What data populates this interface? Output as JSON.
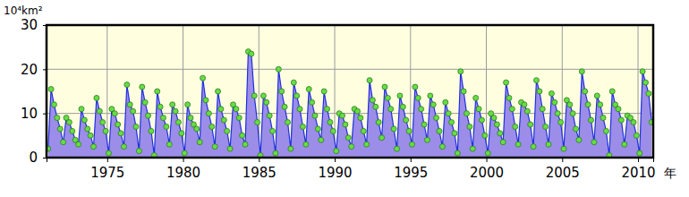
{
  "chart_data": {
    "type": "area",
    "y_label": "10⁴km²",
    "x_label": "年",
    "x": [
      1971.1,
      1971.3,
      1971.5,
      1971.7,
      1971.9,
      1972.1,
      1972.3,
      1972.5,
      1972.7,
      1972.9,
      1973.1,
      1973.3,
      1973.5,
      1973.7,
      1973.9,
      1974.1,
      1974.3,
      1974.5,
      1974.7,
      1974.9,
      1975.1,
      1975.3,
      1975.5,
      1975.7,
      1975.9,
      1976.1,
      1976.3,
      1976.5,
      1976.7,
      1976.9,
      1977.1,
      1977.3,
      1977.5,
      1977.7,
      1977.9,
      1978.1,
      1978.3,
      1978.5,
      1978.7,
      1978.9,
      1979.1,
      1979.3,
      1979.5,
      1979.7,
      1979.9,
      1980.1,
      1980.3,
      1980.5,
      1980.7,
      1980.9,
      1981.1,
      1981.3,
      1981.5,
      1981.7,
      1981.9,
      1982.1,
      1982.3,
      1982.5,
      1982.7,
      1982.9,
      1983.1,
      1983.3,
      1983.5,
      1983.7,
      1983.9,
      1984.1,
      1984.3,
      1984.5,
      1984.7,
      1984.9,
      1985.1,
      1985.3,
      1985.5,
      1985.7,
      1985.9,
      1986.1,
      1986.3,
      1986.5,
      1986.7,
      1986.9,
      1987.1,
      1987.3,
      1987.5,
      1987.7,
      1987.9,
      1988.1,
      1988.3,
      1988.5,
      1988.7,
      1988.9,
      1989.1,
      1989.3,
      1989.5,
      1989.7,
      1989.9,
      1990.1,
      1990.3,
      1990.5,
      1990.7,
      1990.9,
      1991.1,
      1991.3,
      1991.5,
      1991.7,
      1991.9,
      1992.1,
      1992.3,
      1992.5,
      1992.7,
      1992.9,
      1993.1,
      1993.3,
      1993.5,
      1993.7,
      1993.9,
      1994.1,
      1994.3,
      1994.5,
      1994.7,
      1994.9,
      1995.1,
      1995.3,
      1995.5,
      1995.7,
      1995.9,
      1996.1,
      1996.3,
      1996.5,
      1996.7,
      1996.9,
      1997.1,
      1997.3,
      1997.5,
      1997.7,
      1997.9,
      1998.1,
      1998.3,
      1998.5,
      1998.7,
      1998.9,
      1999.1,
      1999.3,
      1999.5,
      1999.7,
      1999.9,
      2000.1,
      2000.3,
      2000.5,
      2000.7,
      2000.9,
      2001.1,
      2001.3,
      2001.5,
      2001.7,
      2001.9,
      2002.1,
      2002.3,
      2002.5,
      2002.7,
      2002.9,
      2003.1,
      2003.3,
      2003.5,
      2003.7,
      2003.9,
      2004.1,
      2004.3,
      2004.5,
      2004.7,
      2004.9,
      2005.1,
      2005.3,
      2005.5,
      2005.7,
      2005.9,
      2006.1,
      2006.3,
      2006.5,
      2006.7,
      2006.9,
      2007.1,
      2007.3,
      2007.5,
      2007.7,
      2007.9,
      2008.1,
      2008.3,
      2008.5,
      2008.7,
      2008.9,
      2009.1,
      2009.3,
      2009.5,
      2009.7,
      2009.9,
      2010.1,
      2010.3,
      2010.5,
      2010.7,
      2010.9
    ],
    "values": [
      2.0,
      15.5,
      12.0,
      9.0,
      6.5,
      3.5,
      9.0,
      8.0,
      6.0,
      4.0,
      3.0,
      11.0,
      8.5,
      6.5,
      5.0,
      2.5,
      13.5,
      10.5,
      8.0,
      6.0,
      1.0,
      11.0,
      10.0,
      7.5,
      5.5,
      2.5,
      16.5,
      12.0,
      10.5,
      7.0,
      1.5,
      16.0,
      12.5,
      9.5,
      6.0,
      0.5,
      15.0,
      11.5,
      9.0,
      7.0,
      3.0,
      12.0,
      10.5,
      8.0,
      5.5,
      1.0,
      12.0,
      9.0,
      7.5,
      6.5,
      3.5,
      18.0,
      13.0,
      10.0,
      7.0,
      2.5,
      15.0,
      11.0,
      8.5,
      6.0,
      2.0,
      12.0,
      11.0,
      9.0,
      5.0,
      3.0,
      24.0,
      23.5,
      14.0,
      8.0,
      0.5,
      14.0,
      12.5,
      9.5,
      6.0,
      1.0,
      20.0,
      15.0,
      11.5,
      8.0,
      2.0,
      17.0,
      14.0,
      11.0,
      7.0,
      3.0,
      15.5,
      12.5,
      9.5,
      6.5,
      4.0,
      15.0,
      11.0,
      8.0,
      6.0,
      1.5,
      10.0,
      9.5,
      7.5,
      4.5,
      2.5,
      11.0,
      10.5,
      9.0,
      6.0,
      3.0,
      17.5,
      13.0,
      11.5,
      8.0,
      4.5,
      16.0,
      13.5,
      11.0,
      6.5,
      2.0,
      14.0,
      11.5,
      8.5,
      6.0,
      3.0,
      16.0,
      13.5,
      11.0,
      7.5,
      4.0,
      14.0,
      12.0,
      9.0,
      6.0,
      2.5,
      12.5,
      10.0,
      8.0,
      5.5,
      1.0,
      19.5,
      15.0,
      10.0,
      7.0,
      2.0,
      13.5,
      11.0,
      8.5,
      5.0,
      1.0,
      10.0,
      9.0,
      7.5,
      5.5,
      3.5,
      17.0,
      13.5,
      11.0,
      7.0,
      3.0,
      12.5,
      12.0,
      10.5,
      7.5,
      2.5,
      17.5,
      15.0,
      11.0,
      7.0,
      3.0,
      14.5,
      12.5,
      10.0,
      8.0,
      2.0,
      13.0,
      12.0,
      10.0,
      6.5,
      4.0,
      19.5,
      15.0,
      12.0,
      8.5,
      3.5,
      14.0,
      12.0,
      9.0,
      6.0,
      0.5,
      15.0,
      12.0,
      11.0,
      8.5,
      3.0,
      9.5,
      9.0,
      8.0,
      5.0,
      1.0,
      19.5,
      17.0,
      14.5,
      8.0
    ],
    "color": "#9b8de8",
    "marker": "circle",
    "grid": true,
    "xlim": [
      1971,
      2011
    ],
    "xticks": [
      1975,
      1980,
      1985,
      1990,
      1995,
      2000,
      2005,
      2010
    ],
    "ylim": [
      0,
      30
    ],
    "yticks": [
      0,
      10,
      20,
      30
    ]
  }
}
